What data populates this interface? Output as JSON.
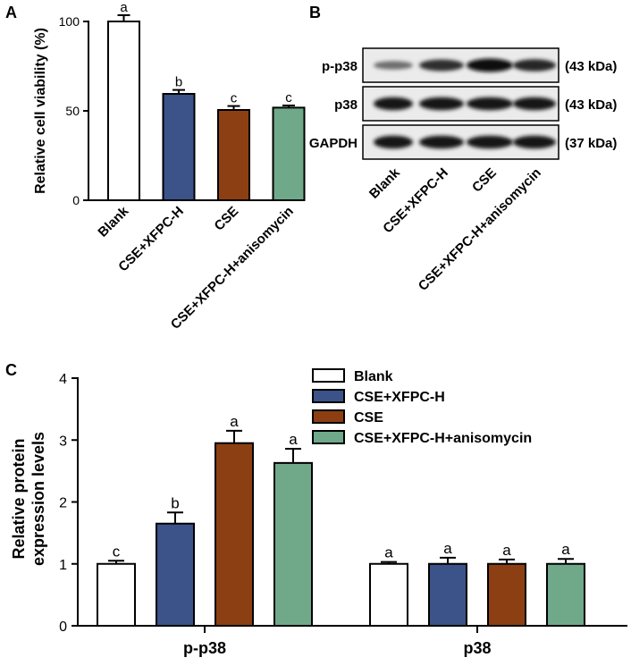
{
  "colors": {
    "blank": "#ffffff",
    "cse_xfpc_h": "#3b5388",
    "cse": "#8c3f12",
    "cse_xfpc_h_anisomycin": "#6fa98a"
  },
  "panel_b": {
    "letter": "B",
    "rows": [
      {
        "label": "p-p38",
        "kda": "(43 kDa)",
        "intensity": [
          0.45,
          0.8,
          1.0,
          0.85
        ]
      },
      {
        "label": "p38",
        "kda": "(43 kDa)",
        "intensity": [
          0.95,
          0.95,
          0.95,
          0.95
        ]
      },
      {
        "label": "GAPDH",
        "kda": "(37 kDa)",
        "intensity": [
          0.95,
          0.95,
          0.95,
          0.95
        ]
      }
    ],
    "lanes": [
      "Blank",
      "CSE+XFPC-H",
      "CSE",
      "CSE+XFPC-H+anisomycin"
    ]
  },
  "chart_data": [
    {
      "panel": "A",
      "type": "bar",
      "ylabel": "Relative cell viability (%)",
      "ylim": [
        0,
        100
      ],
      "yticks": [
        0,
        50,
        100
      ],
      "categories": [
        "Blank",
        "CSE+XFPC-H",
        "CSE",
        "CSE+XFPC-H+anisomycin"
      ],
      "values": [
        100,
        59.5,
        50.5,
        51.8
      ],
      "errors": [
        3.5,
        2.2,
        2.2,
        1.2
      ],
      "significance": [
        "a",
        "b",
        "c",
        "c"
      ]
    },
    {
      "panel": "C",
      "type": "bar",
      "ylabel": [
        "Relative protein",
        "expression levels"
      ],
      "ylim": [
        0,
        4
      ],
      "yticks": [
        0,
        1,
        2,
        3,
        4
      ],
      "categories": [
        "p-p38",
        "p38"
      ],
      "legend_position": "top",
      "series": [
        {
          "name": "Blank",
          "values": [
            1.0,
            1.0
          ],
          "errors": [
            0.05,
            0.03
          ],
          "significance": [
            "c",
            "a"
          ]
        },
        {
          "name": "CSE+XFPC-H",
          "values": [
            1.65,
            1.0
          ],
          "errors": [
            0.18,
            0.1
          ],
          "significance": [
            "b",
            "a"
          ]
        },
        {
          "name": "CSE",
          "values": [
            2.95,
            1.0
          ],
          "errors": [
            0.2,
            0.07
          ],
          "significance": [
            "a",
            "a"
          ]
        },
        {
          "name": "CSE+XFPC-H+anisomycin",
          "values": [
            2.63,
            1.0
          ],
          "errors": [
            0.23,
            0.08
          ],
          "significance": [
            "a",
            "a"
          ]
        }
      ]
    }
  ]
}
